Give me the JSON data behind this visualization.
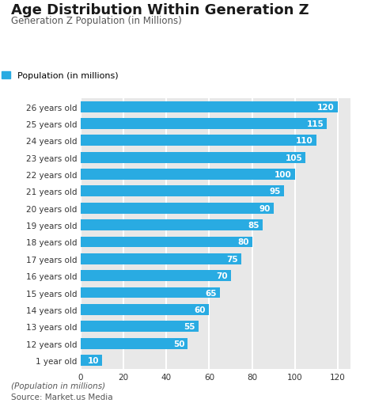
{
  "title": "Age Distribution Within Generation Z",
  "subtitle": "Generation Z Population (in Millions)",
  "legend_label": "Population (in millions)",
  "footer_line1": "(Population in millions)",
  "footer_line2": "Source: Market.us Media",
  "categories": [
    "26 years old",
    "25 years old",
    "24 years old",
    "23 years old",
    "22 years old",
    "21 years old",
    "20 years old",
    "19 years old",
    "18 years old",
    "17 years old",
    "16 years old",
    "15 years old",
    "14 years old",
    "13 years old",
    "12 years old",
    "1 year old"
  ],
  "values": [
    120,
    115,
    110,
    105,
    100,
    95,
    90,
    85,
    80,
    75,
    70,
    65,
    60,
    55,
    50,
    10
  ],
  "bar_color": "#29abe2",
  "label_color": "#ffffff",
  "background_color": "#ffffff",
  "plot_bg_color": "#e8e8e8",
  "title_color": "#1a1a1a",
  "subtitle_color": "#555555",
  "footer_color": "#555555",
  "grid_color": "#ffffff",
  "tick_color": "#333333",
  "xlim": [
    0,
    126
  ],
  "xticks": [
    0,
    20,
    40,
    60,
    80,
    100,
    120
  ],
  "title_fontsize": 13,
  "subtitle_fontsize": 8.5,
  "legend_fontsize": 8,
  "bar_label_fontsize": 7.5,
  "tick_fontsize": 7.5,
  "footer_fontsize": 7.5
}
